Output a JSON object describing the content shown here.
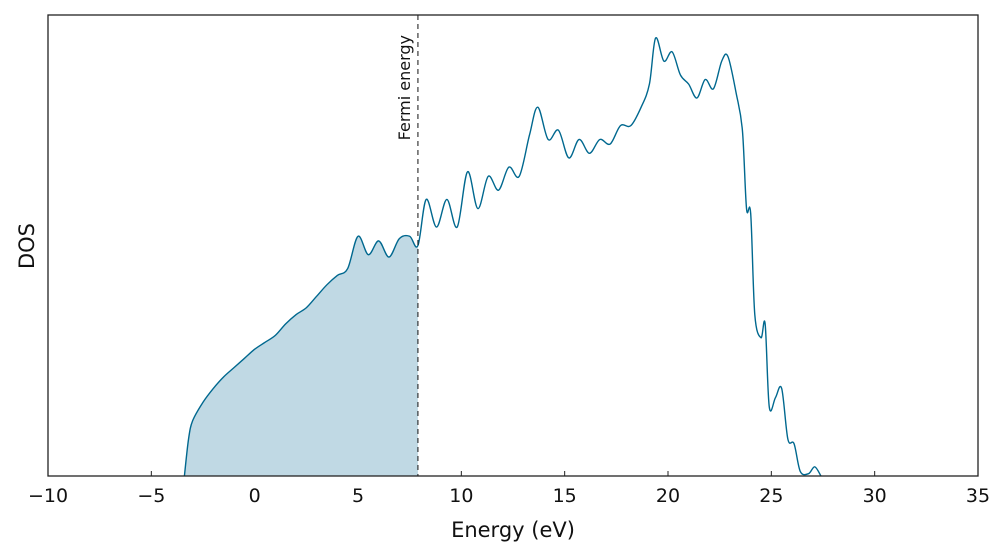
{
  "chart_data": {
    "type": "line",
    "xlabel": "Energy (eV)",
    "ylabel": "DOS",
    "x": [
      -3.4,
      -3.2,
      -3,
      -2.5,
      -2,
      -1.5,
      -1,
      -0.5,
      0,
      0.5,
      1,
      1.5,
      2,
      2.5,
      3,
      3.5,
      4,
      4.5,
      5,
      5.5,
      6,
      6.5,
      7,
      7.5,
      7.9,
      8.3,
      8.8,
      9.3,
      9.8,
      10.3,
      10.8,
      11.3,
      11.8,
      12.3,
      12.8,
      13.3,
      13.7,
      14.2,
      14.7,
      15.2,
      15.7,
      16.2,
      16.7,
      17.2,
      17.7,
      18.2,
      18.7,
      19.1,
      19.4,
      19.8,
      20.2,
      20.6,
      21,
      21.4,
      21.8,
      22.2,
      22.6,
      22.9,
      23.3,
      23.6,
      23.8,
      24,
      24.2,
      24.5,
      24.7,
      24.9,
      25.2,
      25.5,
      25.8,
      26.1,
      26.4,
      26.8,
      27.1,
      27.4
    ],
    "series": [
      {
        "color": "#00688f",
        "fill_color": "#c0d9e4",
        "values": [
          0,
          8,
          12,
          16,
          19,
          21.5,
          23.5,
          25.5,
          27.5,
          29,
          30.5,
          33,
          35,
          36.5,
          39,
          41.5,
          43.5,
          45,
          52,
          48,
          51,
          47.5,
          51.5,
          52,
          50,
          60,
          54,
          60,
          54,
          66,
          58,
          65,
          62,
          67,
          65,
          74,
          80,
          73,
          75,
          69,
          73,
          70,
          73,
          72,
          76,
          76,
          80,
          85,
          95,
          90,
          92,
          87,
          85,
          82,
          86,
          84,
          90,
          91,
          83,
          75,
          58,
          57,
          35,
          30,
          33,
          15,
          17,
          19,
          8,
          7,
          1,
          0.5,
          2,
          0
        ]
      }
    ],
    "annotations": [
      {
        "x": 7.9,
        "label": "Fermi energy"
      }
    ],
    "xlim": [
      -10,
      35
    ],
    "xticks": [
      {
        "value": -10,
        "label": "−10"
      },
      {
        "value": -5,
        "label": "−5"
      },
      0,
      5,
      10,
      15,
      20,
      25,
      30,
      35
    ],
    "ylim": [
      0,
      100
    ]
  }
}
